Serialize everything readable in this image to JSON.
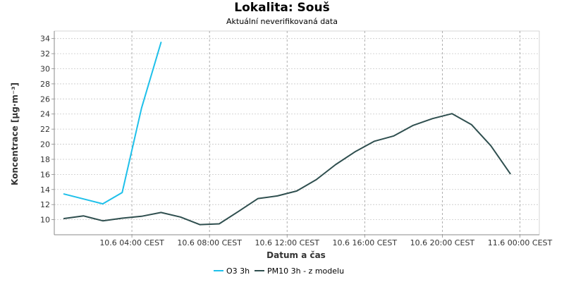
{
  "header": {
    "title": "Lokalita: Souš",
    "subtitle": "Aktuální neverifikovaná data"
  },
  "chart_data": {
    "type": "line",
    "title": "Lokalita: Souš",
    "subtitle": "Aktuální neverifikovaná data",
    "xlabel": "Datum a čas",
    "ylabel": "Koncentrace [µg·m⁻³]",
    "xlim": [
      "2024-06-10T00:00",
      "2024-06-11T01:00"
    ],
    "ylim": [
      8,
      35
    ],
    "yticks": [
      10,
      12,
      14,
      16,
      18,
      20,
      22,
      24,
      26,
      28,
      30,
      32,
      34
    ],
    "xticks": [
      {
        "t": "2024-06-10T04:00",
        "label": "10.6 04:00 CEST"
      },
      {
        "t": "2024-06-10T08:00",
        "label": "10.6 08:00 CEST"
      },
      {
        "t": "2024-06-10T12:00",
        "label": "10.6 12:00 CEST"
      },
      {
        "t": "2024-06-10T16:00",
        "label": "10.6 16:00 CEST"
      },
      {
        "t": "2024-06-10T20:00",
        "label": "10.6 20:00 CEST"
      },
      {
        "t": "2024-06-11T00:00",
        "label": "11.6 00:00 CEST"
      }
    ],
    "grid": true,
    "legend_position": "bottom-center",
    "series": [
      {
        "name": "O3 3h",
        "color": "#1ec0ea",
        "points": [
          {
            "t": "2024-06-10T00:30",
            "y": 13.4
          },
          {
            "t": "2024-06-10T02:30",
            "y": 12.1
          },
          {
            "t": "2024-06-10T03:30",
            "y": 13.6
          },
          {
            "t": "2024-06-10T04:30",
            "y": 24.8
          },
          {
            "t": "2024-06-10T05:30",
            "y": 33.5
          }
        ]
      },
      {
        "name": "PM10 3h - z modelu",
        "color": "#2f4f4f",
        "points": [
          {
            "t": "2024-06-10T00:30",
            "y": 10.15
          },
          {
            "t": "2024-06-10T01:30",
            "y": 10.5
          },
          {
            "t": "2024-06-10T02:30",
            "y": 9.85
          },
          {
            "t": "2024-06-10T03:30",
            "y": 10.2
          },
          {
            "t": "2024-06-10T04:30",
            "y": 10.45
          },
          {
            "t": "2024-06-10T05:30",
            "y": 10.95
          },
          {
            "t": "2024-06-10T06:30",
            "y": 10.35
          },
          {
            "t": "2024-06-10T07:30",
            "y": 9.35
          },
          {
            "t": "2024-06-10T08:30",
            "y": 9.45
          },
          {
            "t": "2024-06-10T09:30",
            "y": 11.1
          },
          {
            "t": "2024-06-10T10:30",
            "y": 12.8
          },
          {
            "t": "2024-06-10T11:30",
            "y": 13.15
          },
          {
            "t": "2024-06-10T12:30",
            "y": 13.8
          },
          {
            "t": "2024-06-10T13:30",
            "y": 15.3
          },
          {
            "t": "2024-06-10T14:30",
            "y": 17.3
          },
          {
            "t": "2024-06-10T15:30",
            "y": 19.0
          },
          {
            "t": "2024-06-10T16:30",
            "y": 20.4
          },
          {
            "t": "2024-06-10T17:30",
            "y": 21.1
          },
          {
            "t": "2024-06-10T18:30",
            "y": 22.5
          },
          {
            "t": "2024-06-10T19:30",
            "y": 23.4
          },
          {
            "t": "2024-06-10T20:30",
            "y": 24.05
          },
          {
            "t": "2024-06-10T21:30",
            "y": 22.6
          },
          {
            "t": "2024-06-10T22:30",
            "y": 19.8
          },
          {
            "t": "2024-06-10T23:30",
            "y": 16.1
          }
        ]
      }
    ]
  }
}
